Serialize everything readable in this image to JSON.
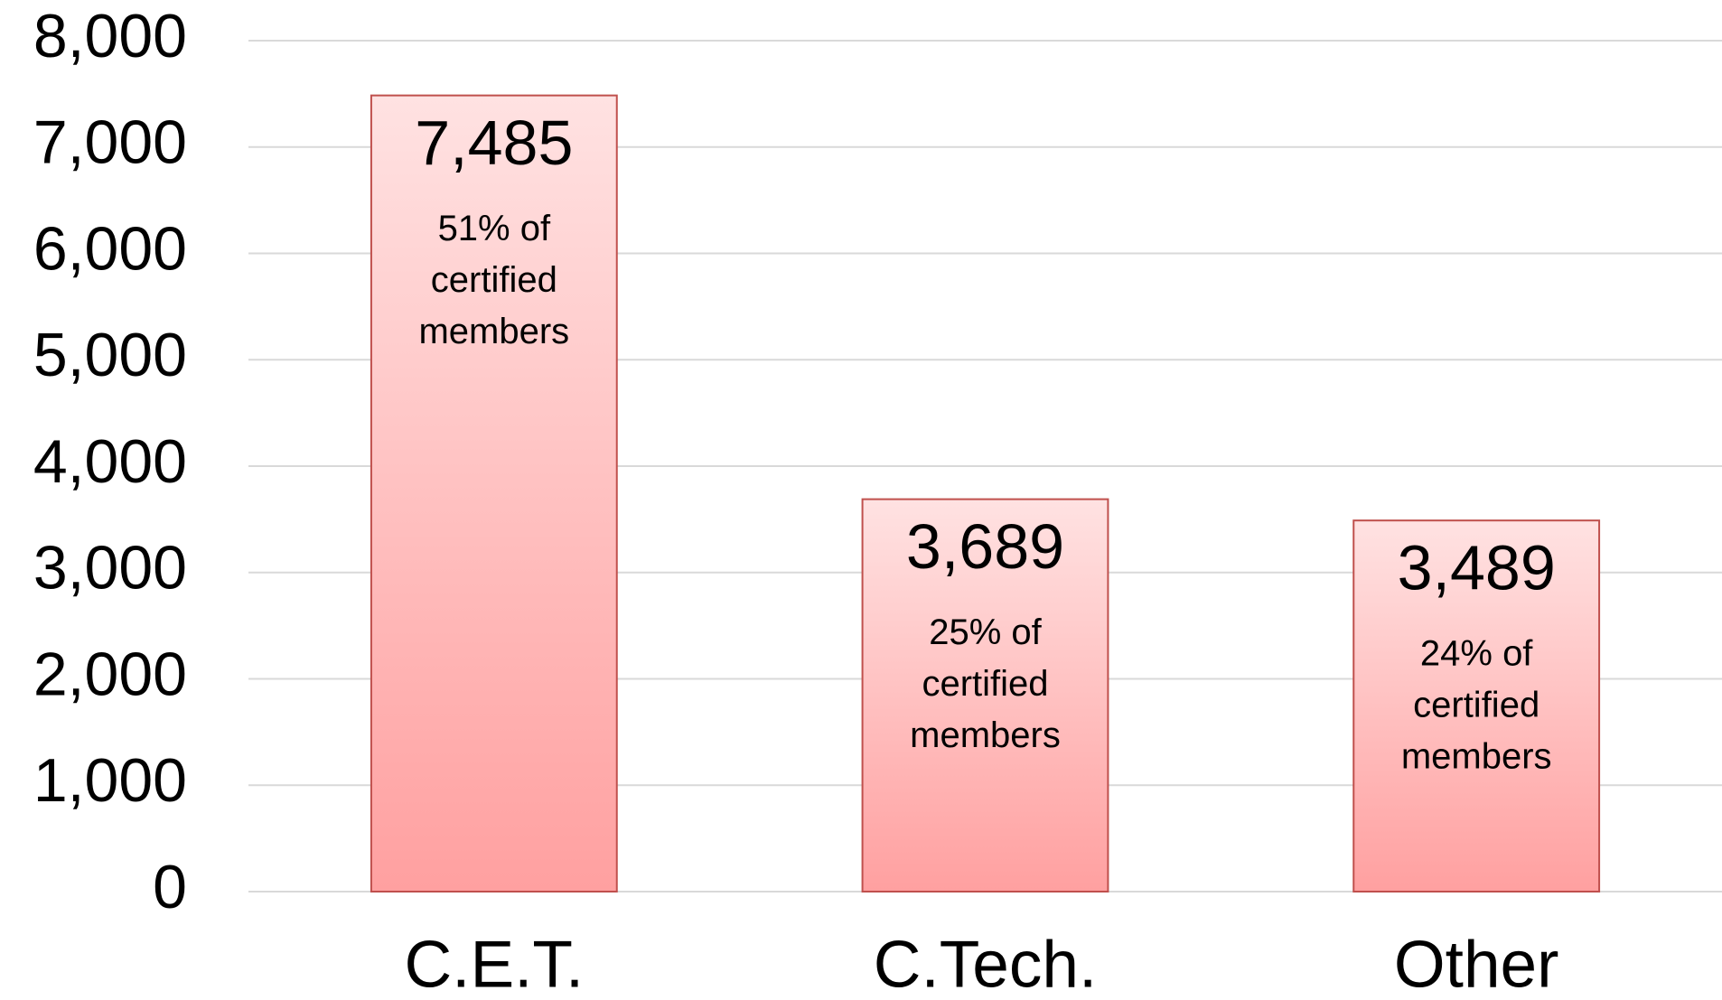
{
  "chart_data": {
    "type": "bar",
    "categories": [
      "C.E.T.",
      "C.Tech.",
      "Other"
    ],
    "values": [
      7485,
      3689,
      3489
    ],
    "value_labels": [
      "7,485",
      "3,689",
      "3,489"
    ],
    "annotations": [
      [
        "51% of",
        "certified",
        "members"
      ],
      [
        "25% of",
        "certified",
        "members"
      ],
      [
        "24% of",
        "certified",
        "members"
      ]
    ],
    "color": "#ffa0a0",
    "ylim": [
      0,
      8000
    ],
    "yticks": [
      {
        "value": 0,
        "label": "0"
      },
      {
        "value": 1000,
        "label": "1,000"
      },
      {
        "value": 2000,
        "label": "2,000"
      },
      {
        "value": 3000,
        "label": "3,000"
      },
      {
        "value": 4000,
        "label": "4,000"
      },
      {
        "value": 5000,
        "label": "5,000"
      },
      {
        "value": 6000,
        "label": "6,000"
      },
      {
        "value": 7000,
        "label": "7,000"
      },
      {
        "value": 8000,
        "label": "8,000"
      }
    ],
    "grid": true
  }
}
